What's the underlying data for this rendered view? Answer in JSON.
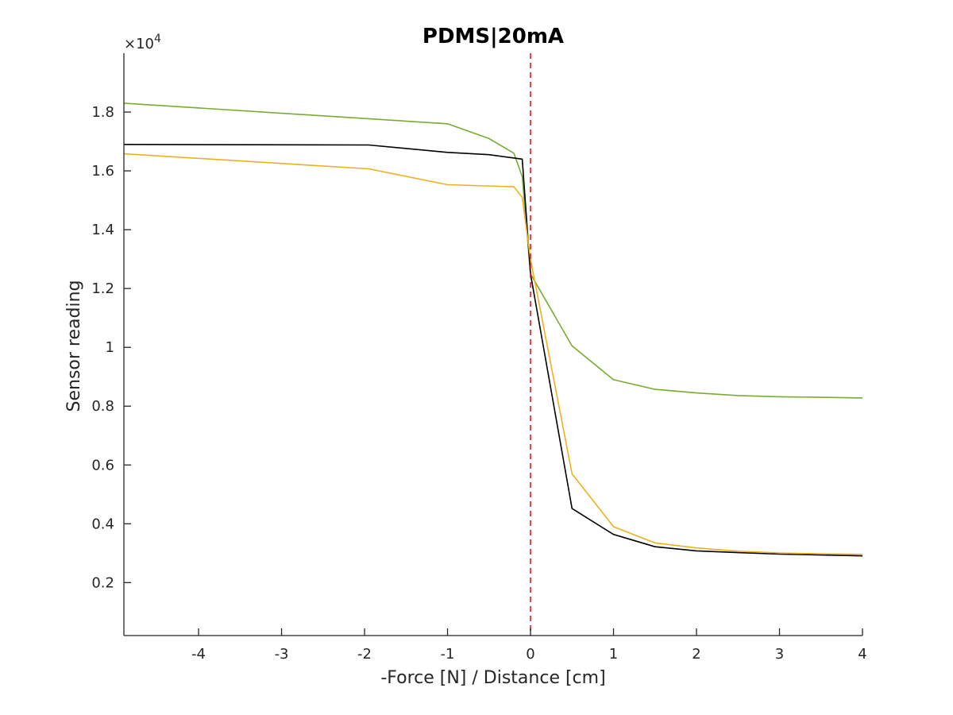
{
  "chart_data": {
    "type": "line",
    "title": "PDMS|20mA",
    "xlabel": "-Force [N] / Distance [cm]",
    "ylabel": "Sensor reading",
    "y_multiplier_label": "×10",
    "y_multiplier_exponent": "4",
    "xlim": [
      -4.9,
      4.0
    ],
    "ylim": [
      0.02,
      2.0
    ],
    "xticks": [
      -4,
      -3,
      -2,
      -1,
      0,
      1,
      2,
      3,
      4
    ],
    "xtick_labels": [
      "-4",
      "-3",
      "-2",
      "-1",
      "0",
      "1",
      "2",
      "3",
      "4"
    ],
    "yticks": [
      0.2,
      0.4,
      0.6,
      0.8,
      1.0,
      1.2,
      1.4,
      1.6,
      1.8
    ],
    "ytick_labels": [
      "0.2",
      "0.4",
      "0.6",
      "0.8",
      "1",
      "1.2",
      "1.4",
      "1.6",
      "1.8"
    ],
    "grid": false,
    "box": false,
    "reference_line": {
      "x": 0,
      "color": "#e41a1c",
      "style": "dashed"
    },
    "series": [
      {
        "color": "#77ac30",
        "x": [
          -4.9,
          -1.0,
          -0.5,
          -0.2,
          -0.1,
          0.0,
          0.5,
          1.0,
          1.5,
          2.0,
          2.5,
          3.0,
          3.5,
          4.0
        ],
        "y": [
          1.83,
          1.76,
          1.71,
          1.66,
          1.58,
          1.25,
          1.005,
          0.89,
          0.857,
          0.845,
          0.836,
          0.832,
          0.83,
          0.828
        ]
      },
      {
        "color": "#000000",
        "x": [
          -4.9,
          -1.95,
          -1.0,
          -0.5,
          -0.1,
          0.0,
          0.5,
          1.0,
          1.5,
          2.0,
          2.5,
          3.0,
          3.5,
          4.0
        ],
        "y": [
          1.69,
          1.688,
          1.663,
          1.655,
          1.64,
          1.25,
          0.452,
          0.364,
          0.322,
          0.308,
          0.302,
          0.297,
          0.294,
          0.291
        ]
      },
      {
        "color": "#edb120",
        "x": [
          -4.9,
          -1.95,
          -1.0,
          -0.2,
          -0.1,
          0.0,
          0.5,
          1.0,
          1.5,
          2.0,
          2.5,
          3.0,
          3.5,
          4.0
        ],
        "y": [
          1.658,
          1.607,
          1.553,
          1.546,
          1.51,
          1.3,
          0.57,
          0.39,
          0.335,
          0.318,
          0.307,
          0.301,
          0.298,
          0.296
        ]
      }
    ]
  }
}
